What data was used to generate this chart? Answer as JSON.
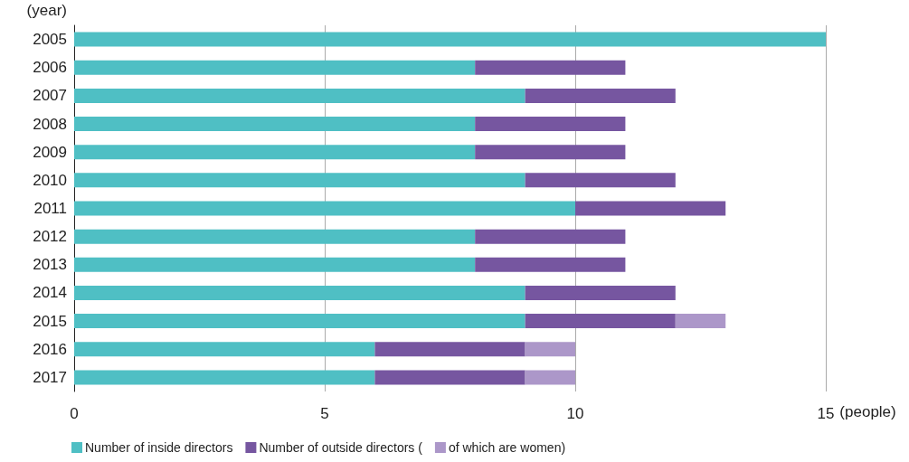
{
  "chart_data": {
    "type": "bar",
    "orientation": "horizontal",
    "stacked": true,
    "ylabel": "(year)",
    "xlabel": "(people)",
    "categories": [
      "2005",
      "2006",
      "2007",
      "2008",
      "2009",
      "2010",
      "2011",
      "2012",
      "2013",
      "2014",
      "2015",
      "2016",
      "2017"
    ],
    "series": [
      {
        "name": "Number of inside directors",
        "color": "#4fbfc4",
        "values": [
          15,
          8,
          9,
          8,
          8,
          9,
          10,
          8,
          8,
          9,
          9,
          6,
          6
        ]
      },
      {
        "name": "Number of outside directors (",
        "color": "#7656a0",
        "values": [
          0,
          3,
          3,
          3,
          3,
          3,
          3,
          3,
          3,
          3,
          3,
          3,
          3
        ]
      },
      {
        "name": "of which are women)",
        "color": "#ac97c9",
        "values": [
          0,
          0,
          0,
          0,
          0,
          0,
          0,
          0,
          0,
          0,
          1,
          1,
          1
        ]
      }
    ],
    "xlim": [
      0,
      15
    ],
    "xticks": [
      0,
      5,
      10,
      15
    ],
    "grid": "x",
    "legend": "bottom left"
  }
}
